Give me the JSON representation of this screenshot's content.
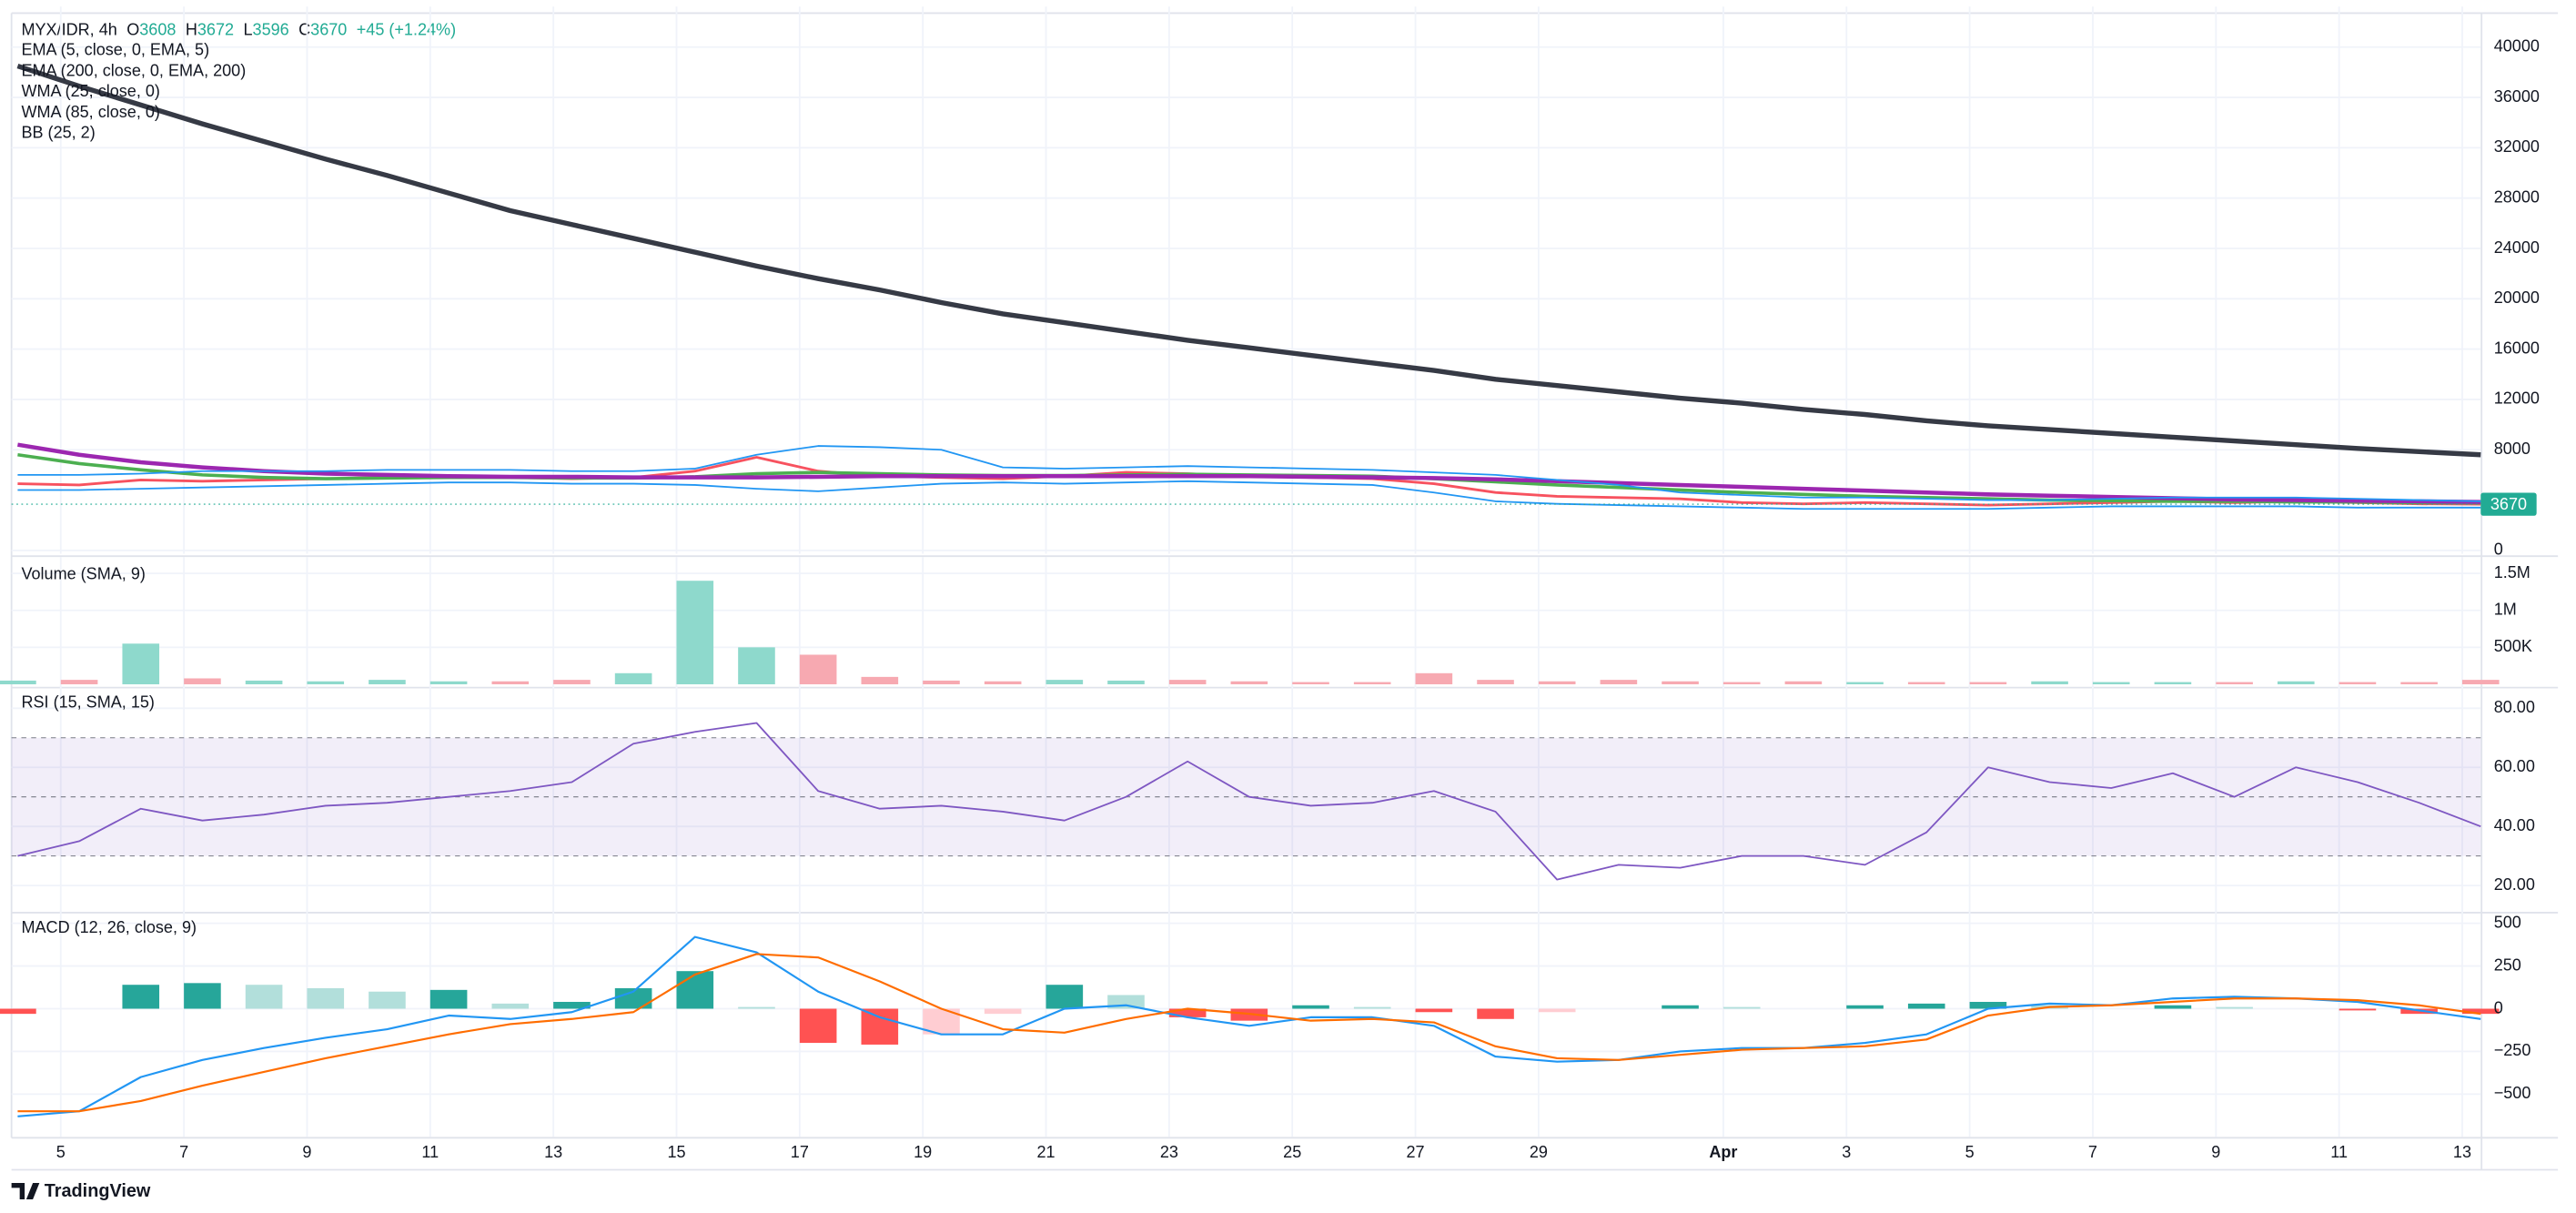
{
  "header": {
    "symbol": "MYX/IDR, 4h",
    "open_label": "O",
    "open": 3608,
    "high_label": "H",
    "high": 3672,
    "low_label": "L",
    "low": 3596,
    "close_label": "C",
    "close": 3670,
    "change": "+45 (+1.24%)"
  },
  "footer": {
    "brand": "TradingView"
  },
  "chart_data": {
    "type": "financial",
    "x": [
      4.3,
      5.3,
      6.3,
      7.3,
      8.3,
      9.3,
      10.3,
      11.3,
      12.3,
      13.3,
      14.3,
      15.3,
      16.3,
      17.3,
      18.3,
      19.3,
      20.3,
      21.3,
      22.3,
      23.3,
      24.3,
      25.3,
      26.3,
      27.3,
      28.3,
      29.3,
      30.3,
      31.3,
      32.3,
      33.3,
      34.3,
      35.3,
      36.3,
      37.3,
      38.3,
      39.3,
      40.3,
      41.3,
      42.3,
      43.3,
      44.3
    ],
    "xlim": [
      4.2,
      44.3
    ],
    "xticks": [
      5,
      7,
      9,
      11,
      13,
      15,
      17,
      19,
      21,
      23,
      25,
      27,
      29,
      {
        "value": 32,
        "label": "Apr"
      },
      {
        "value": 34,
        "label": "3"
      },
      {
        "value": 36,
        "label": "5"
      },
      {
        "value": 38,
        "label": "7"
      },
      {
        "value": 40,
        "label": "9"
      },
      {
        "value": 42,
        "label": "11"
      },
      {
        "value": 44,
        "label": "13"
      }
    ],
    "grid": true,
    "panes": [
      {
        "type": "price",
        "ylim": [
          0,
          42700
        ],
        "yticks": [
          0,
          8000,
          12000,
          16000,
          20000,
          24000,
          28000,
          32000,
          36000,
          40000
        ],
        "last_price": 3670,
        "last_price_color": "#22ab94",
        "series": [
          {
            "name": "EMA (5, close, 0, EMA, 5)",
            "color": "#f7525f",
            "width": 1.6,
            "values": [
              5300,
              5200,
              5600,
              5500,
              5600,
              5700,
              5800,
              5900,
              5800,
              5700,
              5800,
              6300,
              7400,
              6300,
              5900,
              5800,
              5700,
              5900,
              6200,
              6100,
              5900,
              5800,
              5700,
              5300,
              4600,
              4300,
              4200,
              4100,
              3800,
              3700,
              3800,
              3700,
              3600,
              3700,
              3800,
              3900,
              3800,
              3900,
              3800,
              3700,
              3670
            ]
          },
          {
            "name": "EMA (200, close, 0, EMA, 200)",
            "color": "#363a45",
            "width": 3,
            "values": [
              38500,
              36900,
              35400,
              33900,
              32500,
              31100,
              29800,
              28400,
              27000,
              25900,
              24800,
              23700,
              22600,
              21600,
              20700,
              19700,
              18800,
              18100,
              17400,
              16700,
              16100,
              15500,
              14900,
              14300,
              13600,
              13100,
              12600,
              12100,
              11700,
              11200,
              10800,
              10300,
              9900,
              9600,
              9300,
              9000,
              8700,
              8400,
              8100,
              7850,
              7600
            ]
          },
          {
            "name": "WMA (25, close, 0)",
            "color": "#4caf50",
            "width": 2,
            "values": [
              7600,
              6900,
              6400,
              6000,
              5800,
              5700,
              5750,
              5800,
              5800,
              5750,
              5750,
              5850,
              6100,
              6200,
              6100,
              6000,
              5950,
              5950,
              6000,
              6050,
              6000,
              5950,
              5900,
              5700,
              5450,
              5200,
              5000,
              4800,
              4600,
              4450,
              4300,
              4200,
              4100,
              4000,
              3950,
              3900,
              3900,
              3850,
              3850,
              3800,
              3780
            ]
          },
          {
            "name": "WMA (85, close, 0)",
            "color": "#9c27b0",
            "width": 2.5,
            "values": [
              8400,
              7600,
              7000,
              6600,
              6300,
              6100,
              6000,
              5900,
              5850,
              5850,
              5800,
              5800,
              5800,
              5850,
              5900,
              5900,
              5900,
              5900,
              5900,
              5900,
              5900,
              5850,
              5800,
              5750,
              5650,
              5500,
              5350,
              5200,
              5050,
              4900,
              4750,
              4600,
              4450,
              4350,
              4250,
              4150,
              4050,
              4000,
              3950,
              3900,
              3850
            ]
          },
          {
            "name": "BB (25, 2)",
            "color": "#2196f3",
            "width": 1,
            "upper": [
              6000,
              6000,
              6100,
              6300,
              6300,
              6300,
              6400,
              6400,
              6400,
              6300,
              6300,
              6500,
              7600,
              8300,
              8200,
              8000,
              6600,
              6500,
              6600,
              6700,
              6600,
              6500,
              6400,
              6200,
              6000,
              5600,
              5200,
              4600,
              4400,
              4200,
              4200,
              4100,
              4000,
              4000,
              4100,
              4200,
              4200,
              4200,
              4100,
              4000,
              3900
            ],
            "lower": [
              4800,
              4800,
              4900,
              5000,
              5100,
              5200,
              5300,
              5400,
              5400,
              5300,
              5300,
              5200,
              4900,
              4700,
              5000,
              5300,
              5400,
              5300,
              5400,
              5500,
              5400,
              5300,
              5200,
              4600,
              3900,
              3700,
              3600,
              3500,
              3400,
              3300,
              3300,
              3300,
              3300,
              3400,
              3500,
              3500,
              3500,
              3500,
              3400,
              3400,
              3400
            ]
          }
        ]
      },
      {
        "type": "volume",
        "title": "Volume (SMA, 9)",
        "ylim": [
          0,
          1633000
        ],
        "yticks": [
          {
            "value": 500000,
            "label": "500K"
          },
          {
            "value": 1000000,
            "label": "1M"
          },
          {
            "value": 1500000,
            "label": "1.5M"
          }
        ],
        "up_color": "#8ed9cc",
        "down_color": "#f7a9b1",
        "values": [
          50000,
          60000,
          550000,
          80000,
          50000,
          40000,
          60000,
          40000,
          40000,
          60000,
          150000,
          1400000,
          500000,
          400000,
          100000,
          50000,
          40000,
          60000,
          50000,
          60000,
          40000,
          30000,
          30000,
          150000,
          60000,
          40000,
          60000,
          40000,
          30000,
          40000,
          30000,
          30000,
          30000,
          40000,
          30000,
          30000,
          30000,
          40000,
          30000,
          30000,
          60000
        ]
      },
      {
        "type": "rsi",
        "title": "RSI (15, SMA, 15)",
        "ylim": [
          12.2,
          85.6
        ],
        "yticks": [
          {
            "value": 20,
            "label": "20.00"
          },
          {
            "value": 40,
            "label": "40.00"
          },
          {
            "value": 60,
            "label": "60.00"
          },
          {
            "value": 80,
            "label": "80.00"
          }
        ],
        "band": [
          30,
          70
        ],
        "midline": 50,
        "color": "#7e57c2",
        "values": [
          30,
          35,
          46,
          42,
          44,
          47,
          48,
          50,
          52,
          55,
          68,
          72,
          75,
          52,
          46,
          47,
          45,
          42,
          50,
          62,
          50,
          47,
          48,
          52,
          45,
          22,
          27,
          26,
          30,
          30,
          27,
          38,
          60,
          55,
          53,
          58,
          50,
          60,
          55,
          48,
          40
        ]
      },
      {
        "type": "macd",
        "title": "MACD (12, 26, close, 9)",
        "ylim": [
          -731,
          538
        ],
        "yticks": [
          {
            "value": -500,
            "label": "−500"
          },
          {
            "value": -250,
            "label": "−250"
          },
          0,
          250,
          500
        ],
        "histogram_colors": [
          "#26a69a",
          "#b2dfdb",
          "#ff5252",
          "#ffcdd2"
        ],
        "histogram": [
          -30,
          0,
          140,
          150,
          140,
          120,
          100,
          110,
          30,
          40,
          120,
          220,
          10,
          -200,
          -210,
          -150,
          -30,
          140,
          80,
          -50,
          -70,
          20,
          10,
          -20,
          -60,
          -20,
          0,
          20,
          10,
          0,
          20,
          30,
          40,
          20,
          0,
          20,
          10,
          0,
          -10,
          -30,
          -30
        ],
        "series": [
          {
            "color": "#2196f3",
            "values": [
              -630,
              -600,
              -400,
              -300,
              -230,
              -170,
              -120,
              -40,
              -60,
              -20,
              100,
              420,
              330,
              100,
              -50,
              -150,
              -150,
              0,
              20,
              -50,
              -100,
              -50,
              -50,
              -100,
              -280,
              -310,
              -300,
              -250,
              -230,
              -230,
              -200,
              -150,
              0,
              30,
              20,
              60,
              70,
              60,
              40,
              -10,
              -60
            ]
          },
          {
            "color": "#ff6d00",
            "values": [
              -600,
              -600,
              -540,
              -450,
              -370,
              -290,
              -220,
              -150,
              -90,
              -60,
              -20,
              200,
              320,
              300,
              160,
              0,
              -120,
              -140,
              -60,
              0,
              -30,
              -70,
              -60,
              -80,
              -220,
              -290,
              -300,
              -270,
              -240,
              -230,
              -220,
              -180,
              -40,
              10,
              20,
              40,
              60,
              60,
              50,
              20,
              -30
            ]
          }
        ]
      }
    ]
  }
}
